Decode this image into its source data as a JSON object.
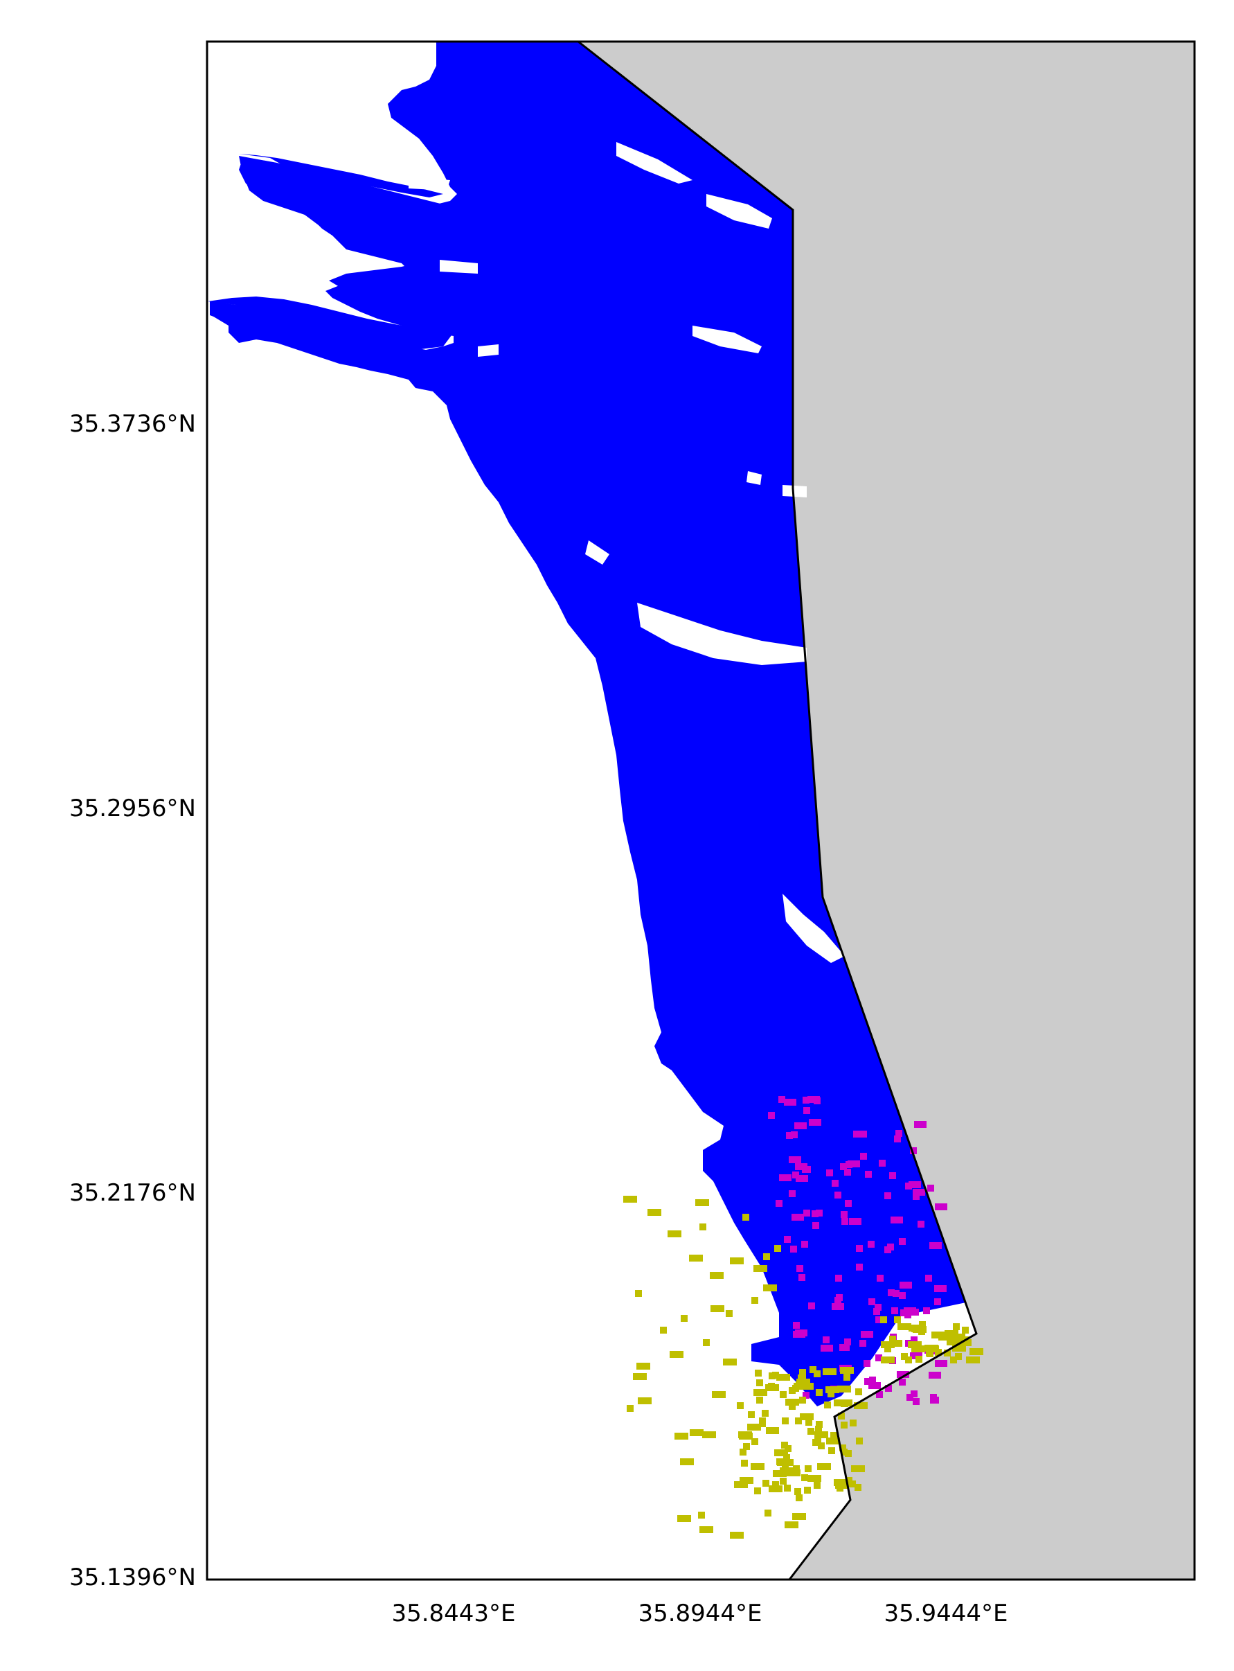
{
  "chart_data": {
    "type": "map",
    "title": "",
    "lon_range": [
      35.7434,
      35.994
    ],
    "lat_range": [
      35.1396,
      35.412
    ],
    "lat_ticks": [
      "35.3736°N",
      "35.2956°N",
      "35.2176°N",
      "35.1396°N"
    ],
    "lon_ticks": [
      "35.8443°E",
      "35.8944°E",
      "35.9444°E"
    ],
    "land_color": "#cccccc",
    "water_color": "#ffffff",
    "series": [
      {
        "color": "#0000ff",
        "description": "large blue classified region"
      },
      {
        "color": "#cc00cc",
        "description": "scattered magenta pixels in the lower blue area"
      },
      {
        "color": "#bfbf00",
        "description": "scattered yellow pixels near the southern shoreline"
      }
    ],
    "grid": false,
    "legend": "none"
  }
}
